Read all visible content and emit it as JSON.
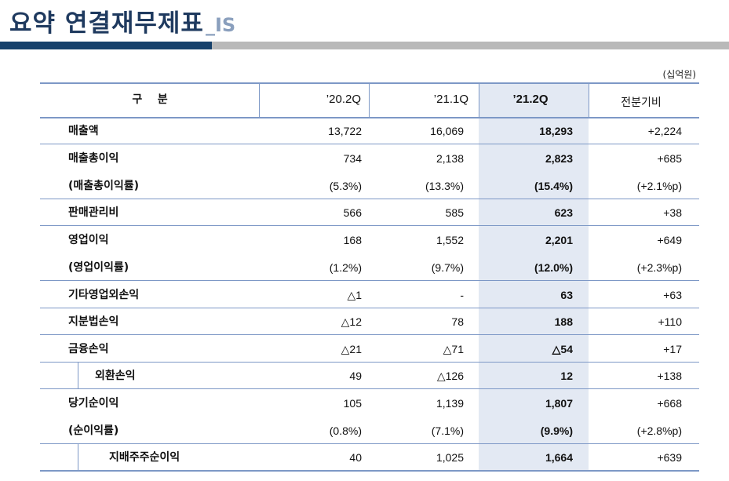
{
  "title": {
    "main": "요약 연결재무제표",
    "suffix": "_IS"
  },
  "unit": "(십억원)",
  "header": {
    "label": "구    분",
    "cols": [
      "’20.2Q",
      "’21.1Q",
      "’21.2Q",
      "전분기비"
    ]
  },
  "rows": [
    {
      "label": "매출액",
      "values": [
        "13,722",
        "16,069",
        "18,293",
        "+2,224"
      ]
    },
    {
      "label": "매출총이익",
      "values": [
        "734",
        "2,138",
        "2,823",
        "+685"
      ]
    },
    {
      "label": "(매출총이익률)",
      "values": [
        "(5.3%)",
        "(13.3%)",
        "(15.4%)",
        "(+2.1%p)"
      ]
    },
    {
      "label": "판매관리비",
      "values": [
        "566",
        "585",
        "623",
        "+38"
      ]
    },
    {
      "label": "영업이익",
      "values": [
        "168",
        "1,552",
        "2,201",
        "+649"
      ]
    },
    {
      "label": "(영업이익률)",
      "values": [
        "(1.2%)",
        "(9.7%)",
        "(12.0%)",
        "(+2.3%p)"
      ]
    },
    {
      "label": "기타영업외손익",
      "values": [
        "△1",
        "-",
        "63",
        "+63"
      ]
    },
    {
      "label": "지분법손익",
      "values": [
        "△12",
        "78",
        "188",
        "+110"
      ]
    },
    {
      "label": "금융손익",
      "values": [
        "△21",
        "△71",
        "△54",
        "+17"
      ]
    },
    {
      "label": "외환손익",
      "values": [
        "49",
        "△126",
        "12",
        "+138"
      ]
    },
    {
      "label": "당기순이익",
      "values": [
        "105",
        "1,139",
        "1,807",
        "+668"
      ]
    },
    {
      "label": "(순이익률)",
      "values": [
        "(0.8%)",
        "(7.1%)",
        "(9.9%)",
        "(+2.8%p)"
      ]
    },
    {
      "label": "지배주주순이익",
      "values": [
        "40",
        "1,025",
        "1,664",
        "+639"
      ]
    }
  ],
  "colors": {
    "title": "#1f3a5f",
    "accent_dark": "#17416b",
    "accent_gray": "#b9b9b9",
    "highlight": "#e3e9f3",
    "rule": "#7d98c6"
  }
}
